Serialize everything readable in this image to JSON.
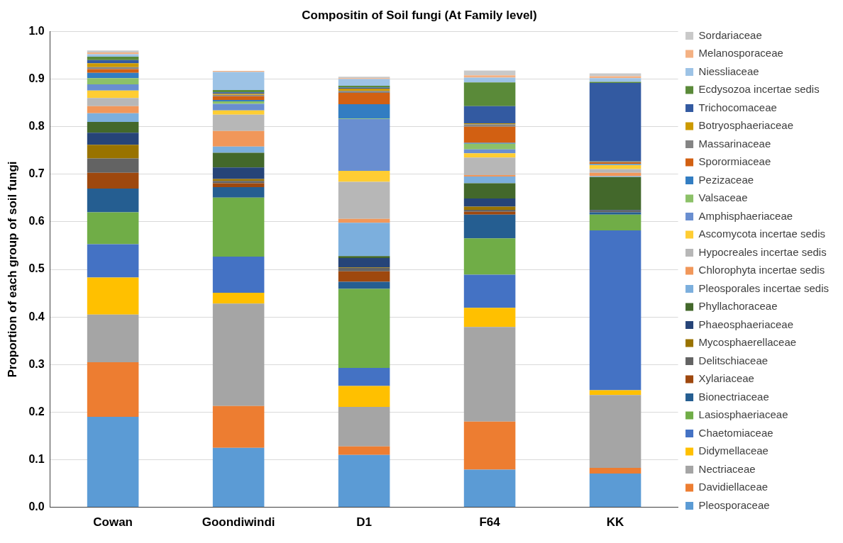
{
  "chart_data": {
    "type": "bar",
    "stacked": true,
    "title": "Compositin of Soil fungi (At Family level)",
    "ylabel": "Proportion of each group of soil fungi",
    "categories": [
      "Cowan",
      "Goondiwindi",
      "D1",
      "F64",
      "KK"
    ],
    "ylim": [
      0,
      1
    ],
    "yticks": [
      {
        "value": 0,
        "label": "0.0"
      },
      {
        "value": 0.1,
        "label": "0.1"
      },
      {
        "value": 0.2,
        "label": "0.2"
      },
      {
        "value": 0.3,
        "label": "0.3"
      },
      {
        "value": 0.4,
        "label": "0.4"
      },
      {
        "value": 0.5,
        "label": "0.5"
      },
      {
        "value": 0.6,
        "label": "0.6"
      },
      {
        "value": 0.7,
        "label": "0.7"
      },
      {
        "value": 0.8,
        "label": "0.8"
      },
      {
        "value": 0.9,
        "label": "0.9"
      },
      {
        "value": 1,
        "label": "1.0"
      }
    ],
    "grid": "y",
    "legend": "right",
    "series": [
      {
        "name": "Pleosporaceae",
        "color": "#5b9bd5",
        "values": [
          0.19,
          0.125,
          0.11,
          0.079,
          0.071
        ]
      },
      {
        "name": "Davidiellaceae",
        "color": "#ed7d31",
        "values": [
          0.115,
          0.088,
          0.018,
          0.101,
          0.012
        ]
      },
      {
        "name": "Nectriaceae",
        "color": "#a5a5a5",
        "values": [
          0.1,
          0.215,
          0.083,
          0.199,
          0.153
        ]
      },
      {
        "name": "Didymellaceae",
        "color": "#ffc000",
        "values": [
          0.078,
          0.023,
          0.044,
          0.04,
          0.01
        ]
      },
      {
        "name": "Chaetomiaceae",
        "color": "#4472c4",
        "values": [
          0.07,
          0.076,
          0.038,
          0.07,
          0.336
        ]
      },
      {
        "name": "Lasiosphaeriaceae",
        "color": "#70ad47",
        "values": [
          0.067,
          0.124,
          0.166,
          0.076,
          0.033
        ]
      },
      {
        "name": "Bionectriaceae",
        "color": "#255e91",
        "values": [
          0.05,
          0.022,
          0.015,
          0.05,
          0.005
        ]
      },
      {
        "name": "Xylariaceae",
        "color": "#9e480e",
        "values": [
          0.033,
          0.008,
          0.022,
          0.006,
          null
        ]
      },
      {
        "name": "Delitschiaceae",
        "color": "#636363",
        "values": [
          0.03,
          0.005,
          0.007,
          0.004,
          0.004
        ]
      },
      {
        "name": "Mycosphaerellaceae",
        "color": "#997300",
        "values": [
          0.029,
          0.004,
          0.001,
          0.007,
          0
        ]
      },
      {
        "name": "Phaeosphaeriaceae",
        "color": "#264478",
        "values": [
          0.025,
          0.024,
          0.02,
          0.017,
          0.001
        ]
      },
      {
        "name": "Phyllachoraceae",
        "color": "#43682b",
        "values": [
          0.023,
          0.031,
          0.004,
          0.032,
          0.069
        ]
      },
      {
        "name": "Pleosporales incertae sedis",
        "color": "#7cafdd",
        "values": [
          0.018,
          0.013,
          0.07,
          0.014,
          0.002
        ]
      },
      {
        "name": "Chlorophyta incertae sedis",
        "color": "#f1975a",
        "values": [
          0.015,
          0.033,
          0.008,
          0.003,
          0.007
        ]
      },
      {
        "name": "Hypocreales incertae sedis",
        "color": "#b7b7b7",
        "values": [
          0.017,
          0.034,
          0.078,
          0.037,
          0.008
        ]
      },
      {
        "name": "Ascomycota incertae sedis",
        "color": "#ffcd33",
        "values": [
          0.016,
          0.009,
          0.023,
          0.009,
          0.008
        ]
      },
      {
        "name": "Amphisphaeriaceae",
        "color": "#698ed0",
        "values": [
          0.013,
          0.014,
          0.109,
          0.008,
          0.001
        ]
      },
      {
        "name": "Valsaceae",
        "color": "#8cc168",
        "values": [
          0.013,
          0.005,
          0.001,
          0.012,
          0.001
        ]
      },
      {
        "name": "Pezizaceae",
        "color": "#327dc2",
        "values": [
          0.011,
          0.003,
          0.03,
          0.002,
          0.001
        ]
      },
      {
        "name": "Sporormiaceae",
        "color": "#d26012",
        "values": [
          0.008,
          0.008,
          0.024,
          0.034,
          0.003
        ]
      },
      {
        "name": "Massarinaceae",
        "color": "#848484",
        "values": [
          0.004,
          0.003,
          0.004,
          0.005,
          0.001
        ]
      },
      {
        "name": "Botryosphaeriaceae",
        "color": "#cc9a00",
        "values": [
          0.008,
          0.002,
          0.005,
          0.002,
          0.001
        ]
      },
      {
        "name": "Trichocomaceae",
        "color": "#335aa1",
        "values": [
          0.007,
          0.003,
          0.002,
          0.036,
          0.165
        ]
      },
      {
        "name": "Ecdysozoa incertae sedis",
        "color": "#5a8a39",
        "values": [
          0.007,
          0.005,
          0.004,
          0.05,
          0.002
        ]
      },
      {
        "name": "Niessliaceae",
        "color": "#9dc3e6",
        "values": [
          0.005,
          0.038,
          0.014,
          0.01,
          0.008
        ]
      },
      {
        "name": "Melanosporaceae",
        "color": "#f4b183",
        "values": [
          0.004,
          0.002,
          0.002,
          0.005,
          0.004
        ]
      },
      {
        "name": "Sordariaceae",
        "color": "#c9c9c9",
        "values": [
          0.004,
          null,
          0.003,
          0.01,
          0.006
        ]
      }
    ]
  }
}
